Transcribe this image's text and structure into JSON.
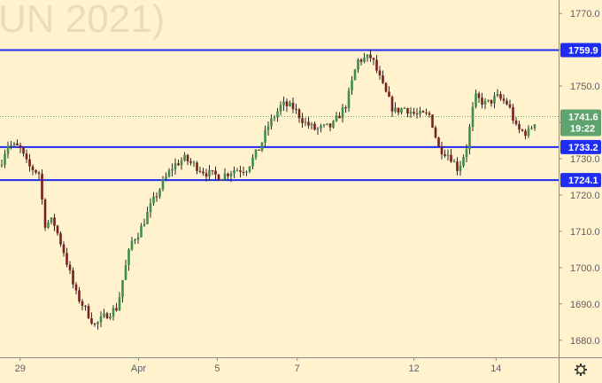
{
  "chart_data": {
    "type": "candlestick",
    "watermark": "UN 2021)",
    "y_range": [
      1675.3,
      1773.7
    ],
    "grid": false,
    "y_ticks": [
      {
        "value": 1770,
        "label": "1770.0"
      },
      {
        "value": 1760,
        "label": ""
      },
      {
        "value": 1750,
        "label": "1750.0"
      },
      {
        "value": 1740,
        "label": ""
      },
      {
        "value": 1730,
        "label": "1730.0"
      },
      {
        "value": 1720,
        "label": "1720.0"
      },
      {
        "value": 1710,
        "label": "1710.0"
      },
      {
        "value": 1700,
        "label": "1700.0"
      },
      {
        "value": 1690,
        "label": "1690.0"
      },
      {
        "value": 1680,
        "label": "1680.0"
      }
    ],
    "x_ticks": [
      {
        "label": "29",
        "pos": 0.036
      },
      {
        "label": "Apr",
        "pos": 0.248
      },
      {
        "label": "5",
        "pos": 0.389
      },
      {
        "label": "7",
        "pos": 0.532
      },
      {
        "label": "12",
        "pos": 0.741
      },
      {
        "label": "14",
        "pos": 0.888
      }
    ],
    "levels": [
      {
        "value": 1759.9,
        "label": "1759.9",
        "color": "#1f2cf2"
      },
      {
        "value": 1733.2,
        "label": "1733.2",
        "color": "#1f2cf2"
      },
      {
        "value": 1724.1,
        "label": "1724.1",
        "color": "#1f2cf2"
      }
    ],
    "current_price": {
      "value": 1741.6,
      "label": "1741.6",
      "countdown": "19:22",
      "color": "#5fa36f"
    },
    "keypoints": [
      [
        0.0,
        1728
      ],
      [
        0.013,
        1734
      ],
      [
        0.035,
        1733
      ],
      [
        0.05,
        1728
      ],
      [
        0.07,
        1726
      ],
      [
        0.08,
        1712
      ],
      [
        0.095,
        1713
      ],
      [
        0.115,
        1704
      ],
      [
        0.135,
        1693
      ],
      [
        0.155,
        1688
      ],
      [
        0.17,
        1684
      ],
      [
        0.19,
        1687
      ],
      [
        0.21,
        1689
      ],
      [
        0.22,
        1697
      ],
      [
        0.235,
        1707
      ],
      [
        0.25,
        1710
      ],
      [
        0.27,
        1717
      ],
      [
        0.29,
        1723
      ],
      [
        0.31,
        1728
      ],
      [
        0.33,
        1730
      ],
      [
        0.35,
        1728
      ],
      [
        0.37,
        1726
      ],
      [
        0.395,
        1725
      ],
      [
        0.42,
        1727
      ],
      [
        0.44,
        1727
      ],
      [
        0.465,
        1733
      ],
      [
        0.48,
        1739
      ],
      [
        0.505,
        1745
      ],
      [
        0.525,
        1744
      ],
      [
        0.545,
        1740
      ],
      [
        0.565,
        1738
      ],
      [
        0.595,
        1739
      ],
      [
        0.62,
        1745
      ],
      [
        0.64,
        1757
      ],
      [
        0.665,
        1758
      ],
      [
        0.685,
        1750
      ],
      [
        0.705,
        1743
      ],
      [
        0.725,
        1744
      ],
      [
        0.745,
        1742
      ],
      [
        0.77,
        1742
      ],
      [
        0.785,
        1733
      ],
      [
        0.805,
        1731
      ],
      [
        0.82,
        1727
      ],
      [
        0.835,
        1733
      ],
      [
        0.85,
        1747
      ],
      [
        0.87,
        1745
      ],
      [
        0.89,
        1747
      ],
      [
        0.91,
        1745
      ],
      [
        0.925,
        1738
      ],
      [
        0.945,
        1737
      ],
      [
        0.96,
        1741
      ]
    ]
  }
}
